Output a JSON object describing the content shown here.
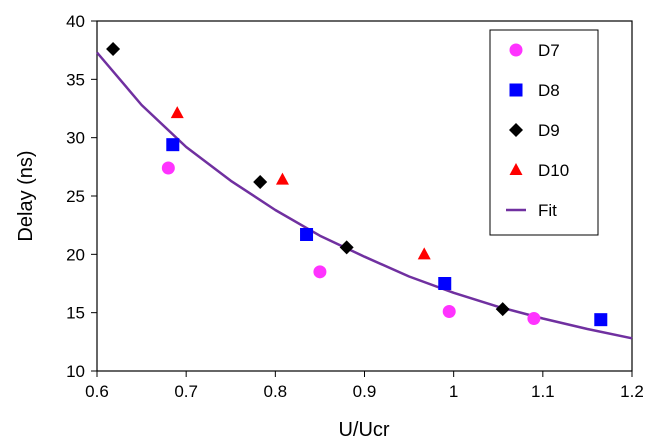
{
  "chart_data": {
    "type": "scatter",
    "xlabel": "U/Ucr",
    "ylabel": "Delay (ns)",
    "xlim": [
      0.6,
      1.2
    ],
    "ylim": [
      10,
      40
    ],
    "xticks": [
      "0.6",
      "0.7",
      "0.8",
      "0.9",
      "1",
      "1.1",
      "1.2"
    ],
    "yticks": [
      "10",
      "15",
      "20",
      "25",
      "30",
      "35",
      "40"
    ],
    "grid": false,
    "legend_position": "top-right",
    "series": [
      {
        "name": "D7",
        "marker": "circle",
        "color": "#ff33ff",
        "x": [
          0.68,
          0.85,
          0.995,
          1.09
        ],
        "y": [
          27.4,
          18.5,
          15.1,
          14.5
        ]
      },
      {
        "name": "D8",
        "marker": "square",
        "color": "#0000ff",
        "x": [
          0.685,
          0.835,
          0.99,
          1.165
        ],
        "y": [
          29.4,
          21.7,
          17.5,
          14.4
        ]
      },
      {
        "name": "D9",
        "marker": "diamond",
        "color": "#000000",
        "x": [
          0.618,
          0.783,
          0.88,
          1.055
        ],
        "y": [
          37.6,
          26.2,
          20.6,
          15.3
        ]
      },
      {
        "name": "D10",
        "marker": "triangle",
        "color": "#ff0000",
        "x": [
          0.69,
          0.808,
          0.967
        ],
        "y": [
          32.1,
          26.4,
          20.0
        ]
      },
      {
        "name": "Fit",
        "marker": "line",
        "color": "#7030a0",
        "x": [
          0.6,
          0.65,
          0.7,
          0.75,
          0.8,
          0.85,
          0.9,
          0.95,
          1.0,
          1.05,
          1.1,
          1.15,
          1.2
        ],
        "y": [
          37.3,
          32.8,
          29.2,
          26.3,
          23.8,
          21.6,
          19.8,
          18.1,
          16.7,
          15.5,
          14.5,
          13.6,
          12.8
        ]
      }
    ]
  }
}
